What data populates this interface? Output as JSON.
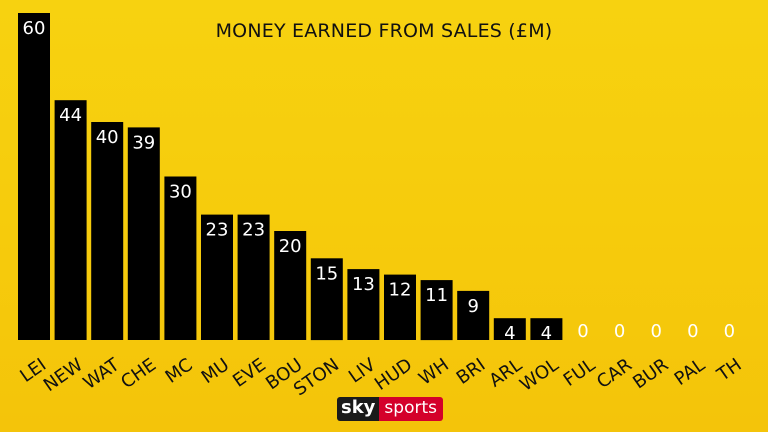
{
  "brand": {
    "sky": "sky",
    "sports": "sports"
  },
  "colors": {
    "background": "#f6cb0c",
    "bar": "#000000",
    "value_text": "#ffffff",
    "label_text": "#111111"
  },
  "chart_data": {
    "type": "bar",
    "title": "MONEY EARNED FROM SALES (£M)",
    "xlabel": "",
    "ylabel": "",
    "ylim": [
      0,
      60
    ],
    "grid": false,
    "categories": [
      "LEI",
      "NEW",
      "WAT",
      "CHE",
      "MC",
      "MU",
      "EVE",
      "BOU",
      "STON",
      "LIV",
      "HUD",
      "WH",
      "BRI",
      "ARL",
      "WOL",
      "FUL",
      "CAR",
      "BUR",
      "PAL",
      "TH"
    ],
    "values": [
      60,
      44,
      40,
      39,
      30,
      23,
      23,
      20,
      15,
      13,
      12,
      11,
      9,
      4,
      4,
      0,
      0,
      0,
      0,
      0
    ]
  }
}
